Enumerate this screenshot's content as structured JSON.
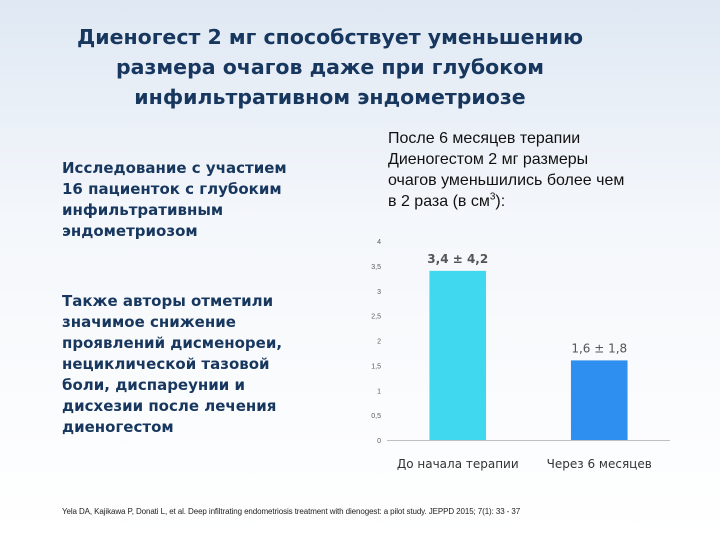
{
  "slide": {
    "title_lines": [
      "Диеногест 2 мг способствует уменьшению",
      "размера очагов даже при глубоком",
      "инфильтративном эндометриозе"
    ],
    "study_lines": [
      "Исследование с участием",
      "16 пациенток с глубоким",
      "инфильтративным",
      "эндометриозом"
    ],
    "authors_lines": [
      "Также авторы отметили",
      "значимое снижение",
      "проявлений дисменореи,",
      "нециклической тазовой",
      "боли, диспареунии и",
      "дисхезии после лечения",
      "диеногестом"
    ],
    "result_lines": [
      "После 6 месяцев терапии",
      "Диеногестом 2 мг  размеры",
      "очагов уменьшились более чем"
    ],
    "result_last_prefix": "в 2 раза (в см",
    "result_last_sup": "3",
    "result_last_suffix": "):",
    "citation": "Yela DA, Kajikawa P, Donati  L, et al. Deep infiltrating endometriosis treatment with dienogest: a pilot study. JEPPD  2015; 7(1): 33 - 37"
  },
  "colors": {
    "title": "#17375e",
    "bar_1": "#3fd8ee",
    "bar_2": "#2f8ff0",
    "value_label": "#555555",
    "axis_text": "#595959"
  },
  "chart_data": {
    "type": "bar",
    "categories": [
      "До начала терапии",
      "Через 6 месяцев"
    ],
    "values": [
      3.4,
      1.6
    ],
    "data_labels": [
      "3,4 ± 4,2",
      "1,6 ± 1,8"
    ],
    "yticks": [
      "0",
      "0,5",
      "1",
      "1,5",
      "2",
      "2,5",
      "3",
      "3,5",
      "4"
    ],
    "ylim": [
      0,
      4
    ],
    "grid": false,
    "legend": "none"
  }
}
